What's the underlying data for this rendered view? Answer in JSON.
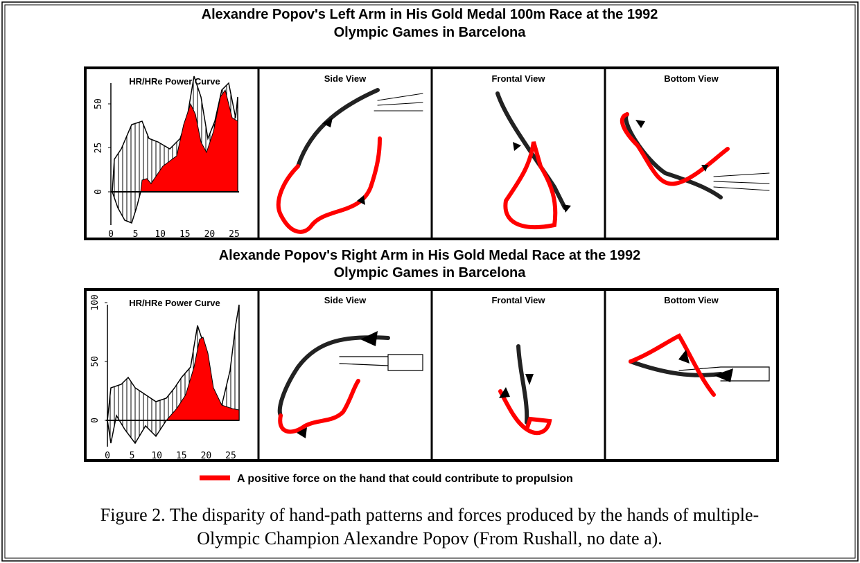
{
  "figure": {
    "panels": [
      {
        "title_lines": [
          "Alexandre Popov's Left Arm in His Gold Medal 100m Race at the 1992",
          "Olympic Games in Barcelona"
        ],
        "power_curve": {
          "title": "HR/HRe Power Curve",
          "yticks": [
            0,
            25,
            50
          ],
          "xticks": [
            0,
            5,
            10,
            15,
            20,
            25
          ]
        },
        "views": [
          "Side View",
          "Frontal View",
          "Bottom View"
        ]
      },
      {
        "title_lines": [
          "Alexande Popov's Right Arm in His Gold Medal Race at the 1992",
          "Olympic Games in Barcelona"
        ],
        "power_curve": {
          "title": "HR/HRe Power Curve",
          "yticks": [
            0,
            50,
            100
          ],
          "xticks": [
            0,
            5,
            10,
            15,
            20,
            25
          ]
        },
        "views": [
          "Side View",
          "Frontal View",
          "Bottom View"
        ]
      }
    ],
    "legend": "A positive force on the hand that could contribute to propulsion",
    "caption_lines": [
      "Figure 2. The disparity of hand-path patterns and forces produced by the hands of multiple-",
      "Olympic Champion Alexandre Popov (From Rushall, no date a)."
    ]
  }
}
